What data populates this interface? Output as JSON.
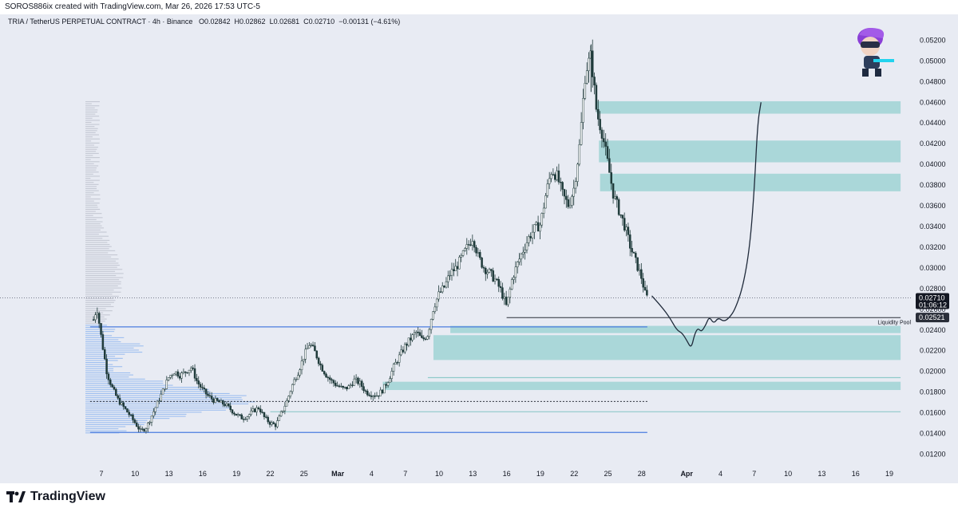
{
  "header": {
    "credit": "SOROS886ix created with TradingView.com, Mar 26, 2026 17:53 UTC-5",
    "symbol": "TRIA / TetherUS PERPETUAL CONTRACT · 4h · Binance",
    "open_label": "O",
    "open": "0.02842",
    "high_label": "H",
    "high": "0.02862",
    "low_label": "L",
    "low": "0.02681",
    "close_label": "C",
    "close": "0.02710",
    "change": "−0.00131 (−4.61%)"
  },
  "footer": {
    "brand": "TradingView"
  },
  "colors": {
    "background": "#e8ebf3",
    "zone": "#9fd3d3",
    "line_blue": "#4a7de0",
    "candle": "#1f3a3a",
    "volume_profile": "#8fb6ee",
    "volume_profile_grey": "#b8bcc8"
  },
  "chart_data": {
    "type": "candlestick",
    "title": "TRIA / TetherUS PERPETUAL CONTRACT · 4h · Binance",
    "ylim": [
      0.0115,
      0.0528
    ],
    "y_ticks": [
      "0.05200",
      "0.05000",
      "0.04800",
      "0.04600",
      "0.04400",
      "0.04200",
      "0.04000",
      "0.03800",
      "0.03600",
      "0.03400",
      "0.03200",
      "0.03000",
      "0.02800",
      "0.02600",
      "0.02400",
      "0.02200",
      "0.02000",
      "0.01800",
      "0.01600",
      "0.01400",
      "0.01200"
    ],
    "x_ticks": [
      {
        "label": "7",
        "day": 7
      },
      {
        "label": "10",
        "day": 10
      },
      {
        "label": "13",
        "day": 13
      },
      {
        "label": "16",
        "day": 16
      },
      {
        "label": "19",
        "day": 19
      },
      {
        "label": "22",
        "day": 22
      },
      {
        "label": "25",
        "day": 25
      },
      {
        "label": "Mar",
        "day": 28,
        "bold": true
      },
      {
        "label": "4",
        "day": 31
      },
      {
        "label": "7",
        "day": 34
      },
      {
        "label": "10",
        "day": 37
      },
      {
        "label": "13",
        "day": 40
      },
      {
        "label": "16",
        "day": 43
      },
      {
        "label": "19",
        "day": 46
      },
      {
        "label": "22",
        "day": 49
      },
      {
        "label": "25",
        "day": 52
      },
      {
        "label": "28",
        "day": 55
      },
      {
        "label": "Apr",
        "day": 59,
        "bold": true
      },
      {
        "label": "4",
        "day": 62
      },
      {
        "label": "7",
        "day": 65
      },
      {
        "label": "10",
        "day": 68
      },
      {
        "label": "13",
        "day": 71
      },
      {
        "label": "16",
        "day": 74
      },
      {
        "label": "19",
        "day": 77
      }
    ],
    "price_path": [
      [
        6.3,
        0.025
      ],
      [
        6.6,
        0.0262
      ],
      [
        7.0,
        0.0232
      ],
      [
        7.5,
        0.0198
      ],
      [
        8.0,
        0.0183
      ],
      [
        8.5,
        0.0172
      ],
      [
        9.0,
        0.0165
      ],
      [
        9.5,
        0.0158
      ],
      [
        10.0,
        0.015
      ],
      [
        10.5,
        0.0142
      ],
      [
        11.0,
        0.0146
      ],
      [
        11.5,
        0.0158
      ],
      [
        12.0,
        0.017
      ],
      [
        12.5,
        0.0182
      ],
      [
        13.0,
        0.0195
      ],
      [
        13.5,
        0.02
      ],
      [
        14.0,
        0.0196
      ],
      [
        14.5,
        0.02
      ],
      [
        15.0,
        0.0204
      ],
      [
        15.5,
        0.019
      ],
      [
        16.0,
        0.0182
      ],
      [
        16.5,
        0.0176
      ],
      [
        17.0,
        0.0172
      ],
      [
        17.5,
        0.017
      ],
      [
        18.0,
        0.0168
      ],
      [
        18.5,
        0.0163
      ],
      [
        19.0,
        0.0158
      ],
      [
        19.5,
        0.0155
      ],
      [
        20.0,
        0.0157
      ],
      [
        20.5,
        0.0162
      ],
      [
        21.0,
        0.0165
      ],
      [
        21.5,
        0.0155
      ],
      [
        22.0,
        0.015
      ],
      [
        22.5,
        0.0148
      ],
      [
        23.0,
        0.016
      ],
      [
        23.5,
        0.0172
      ],
      [
        24.0,
        0.0188
      ],
      [
        24.5,
        0.02
      ],
      [
        25.0,
        0.0215
      ],
      [
        25.5,
        0.0227
      ],
      [
        26.0,
        0.0218
      ],
      [
        26.5,
        0.0205
      ],
      [
        27.0,
        0.0196
      ],
      [
        27.5,
        0.019
      ],
      [
        28.0,
        0.0186
      ],
      [
        28.5,
        0.0183
      ],
      [
        29.0,
        0.0185
      ],
      [
        29.5,
        0.0192
      ],
      [
        30.0,
        0.0188
      ],
      [
        30.5,
        0.018
      ],
      [
        31.0,
        0.0178
      ],
      [
        31.5,
        0.0177
      ],
      [
        32.0,
        0.0182
      ],
      [
        32.5,
        0.0192
      ],
      [
        33.0,
        0.0205
      ],
      [
        33.5,
        0.0215
      ],
      [
        34.0,
        0.0225
      ],
      [
        34.5,
        0.0232
      ],
      [
        35.0,
        0.0238
      ],
      [
        35.5,
        0.023
      ],
      [
        36.0,
        0.0236
      ],
      [
        36.5,
        0.0262
      ],
      [
        37.0,
        0.0275
      ],
      [
        37.5,
        0.0282
      ],
      [
        38.0,
        0.0295
      ],
      [
        38.5,
        0.03
      ],
      [
        39.0,
        0.031
      ],
      [
        39.5,
        0.032
      ],
      [
        40.0,
        0.033
      ],
      [
        40.5,
        0.031
      ],
      [
        41.0,
        0.03
      ],
      [
        41.5,
        0.0295
      ],
      [
        42.0,
        0.0288
      ],
      [
        42.5,
        0.0278
      ],
      [
        43.0,
        0.0262
      ],
      [
        43.5,
        0.029
      ],
      [
        44.0,
        0.0305
      ],
      [
        44.5,
        0.0318
      ],
      [
        45.0,
        0.033
      ],
      [
        45.5,
        0.0338
      ],
      [
        46.0,
        0.0342
      ],
      [
        46.5,
        0.0372
      ],
      [
        47.0,
        0.0395
      ],
      [
        47.5,
        0.0388
      ],
      [
        48.0,
        0.037
      ],
      [
        48.5,
        0.036
      ],
      [
        49.0,
        0.0378
      ],
      [
        49.5,
        0.042
      ],
      [
        50.0,
        0.049
      ],
      [
        50.5,
        0.0505
      ],
      [
        51.0,
        0.045
      ],
      [
        51.5,
        0.043
      ],
      [
        52.0,
        0.04
      ],
      [
        52.5,
        0.037
      ],
      [
        53.0,
        0.0355
      ],
      [
        53.5,
        0.034
      ],
      [
        54.0,
        0.032
      ],
      [
        54.5,
        0.0305
      ],
      [
        55.0,
        0.029
      ],
      [
        55.3,
        0.0275
      ],
      [
        55.5,
        0.0271
      ]
    ],
    "projection_path": [
      [
        55.9,
        0.0273
      ],
      [
        56.8,
        0.0262
      ],
      [
        57.5,
        0.0252
      ],
      [
        58.1,
        0.024
      ],
      [
        58.6,
        0.0237
      ],
      [
        59.0,
        0.023
      ],
      [
        59.4,
        0.0222
      ],
      [
        59.7,
        0.0236
      ],
      [
        60.0,
        0.0242
      ],
      [
        60.3,
        0.0238
      ],
      [
        60.7,
        0.0245
      ],
      [
        61.0,
        0.0253
      ],
      [
        61.4,
        0.0246
      ],
      [
        61.8,
        0.0252
      ],
      [
        62.3,
        0.0248
      ],
      [
        62.8,
        0.0252
      ],
      [
        63.3,
        0.026
      ],
      [
        64.0,
        0.0282
      ],
      [
        64.6,
        0.032
      ],
      [
        65.0,
        0.0375
      ],
      [
        65.3,
        0.044
      ],
      [
        65.6,
        0.046
      ]
    ],
    "zones": [
      {
        "y0": 0.0449,
        "y1": 0.0461,
        "x0": 51.0,
        "x1": 78.0
      },
      {
        "y0": 0.0402,
        "y1": 0.0423,
        "x0": 51.2,
        "x1": 78.0
      },
      {
        "y0": 0.0374,
        "y1": 0.0391,
        "x0": 51.3,
        "x1": 78.0
      },
      {
        "y0": 0.0237,
        "y1": 0.0244,
        "x0": 38.0,
        "x1": 78.0
      },
      {
        "y0": 0.0211,
        "y1": 0.0235,
        "x0": 36.5,
        "x1": 78.0
      },
      {
        "y0": 0.0182,
        "y1": 0.019,
        "x0": 32.0,
        "x1": 78.0
      }
    ],
    "horizontal_lines": [
      {
        "y": 0.0243,
        "x0": 6.0,
        "x1": 55.5,
        "style": "solid-blue"
      },
      {
        "y": 0.0141,
        "x0": 6.0,
        "x1": 55.5,
        "style": "solid-blue"
      },
      {
        "y": 0.0171,
        "x0": 6.0,
        "x1": 55.5,
        "style": "dotted-dark"
      },
      {
        "y": 0.0161,
        "x0": 22.0,
        "x1": 78.0,
        "style": "solid-teal"
      },
      {
        "y": 0.0194,
        "x0": 36.0,
        "x1": 78.0,
        "style": "solid-teal"
      },
      {
        "y": 0.0252,
        "x0": 43.0,
        "x1": 78.0,
        "style": "solid-dark"
      }
    ],
    "annotations": {
      "liquidity_pool_label": "Liquidity Pool",
      "liquidity_pool_y": 0.0248
    },
    "price_labels": {
      "last_price": "0.02710",
      "last_price_value": 0.0271,
      "countdown": "01:06:12",
      "level": "0.02521",
      "level_value": 0.02521
    },
    "volume_profile_peak_price": 0.0171
  }
}
